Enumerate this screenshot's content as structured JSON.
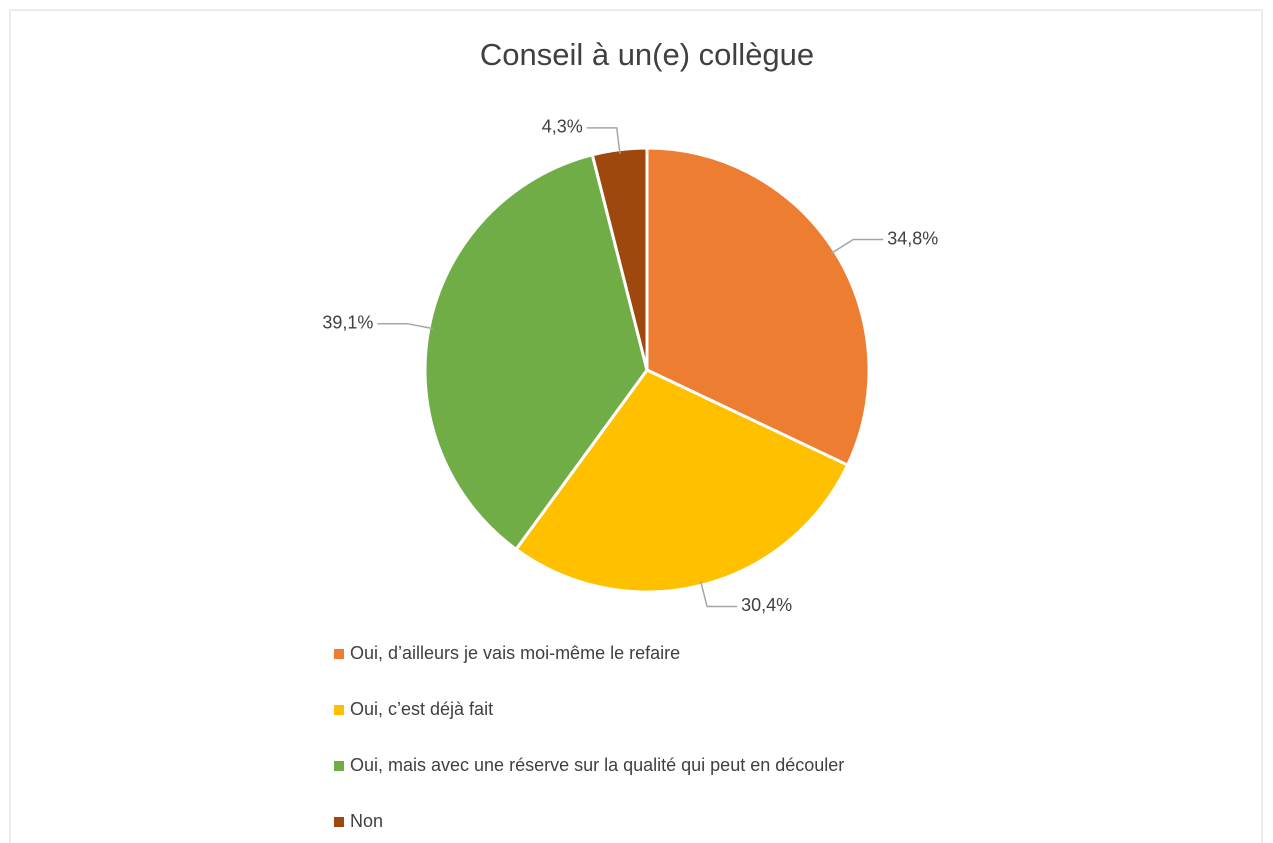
{
  "chart_data": {
    "type": "pie",
    "title": "Conseil à un(e) collègue",
    "categories": [
      "Oui, d’ailleurs je vais moi-même le refaire",
      "Oui, c’est déjà fait",
      "Oui, mais avec une réserve sur la qualité qui peut en découler",
      "Non"
    ],
    "values": [
      34.8,
      30.4,
      39.1,
      4.3
    ],
    "value_labels": [
      "34,8%",
      "30,4%",
      "39,1%",
      "4,3%"
    ],
    "colors": [
      "#ED7D31",
      "#FFC000",
      "#70AD47",
      "#9E480E"
    ],
    "legend": "bottom"
  }
}
